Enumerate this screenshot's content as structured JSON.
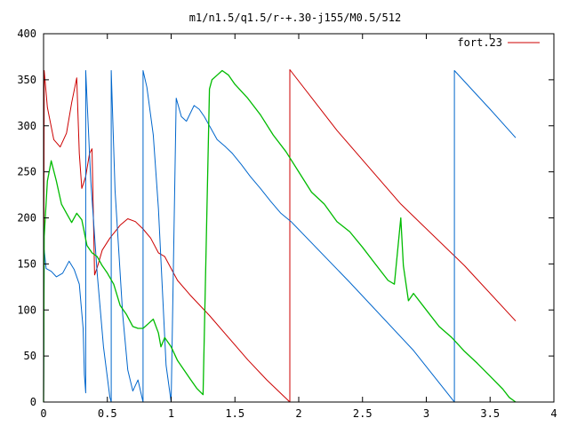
{
  "chart_data": {
    "type": "line",
    "title": "m1/n1.5/q1.5/r-+.30-j155/M0.5/512",
    "xlabel": "",
    "ylabel": "",
    "xlim": [
      0,
      4
    ],
    "ylim": [
      0,
      400
    ],
    "x_ticks": [
      0,
      0.5,
      1,
      1.5,
      2,
      2.5,
      3,
      3.5,
      4
    ],
    "x_tick_labels": [
      "0",
      "0.5",
      "1",
      "1.5",
      "2",
      "2.5",
      "3",
      "3.5",
      "4"
    ],
    "y_ticks": [
      0,
      50,
      100,
      150,
      200,
      250,
      300,
      350,
      400
    ],
    "y_tick_labels": [
      "0",
      "50",
      "100",
      "150",
      "200",
      "250",
      "300",
      "350",
      "400"
    ],
    "grid": false,
    "legend_position": "top-right",
    "legend": [
      {
        "label": "fort.23",
        "color": "#cc0000"
      }
    ],
    "series": [
      {
        "name": "fort.23",
        "color": "#cc0000",
        "x": [
          0,
          0.005,
          0.03,
          0.08,
          0.13,
          0.18,
          0.22,
          0.26,
          0.28,
          0.3,
          0.33,
          0.36,
          0.38,
          0.4,
          0.42,
          0.46,
          0.52,
          0.6,
          0.66,
          0.72,
          0.78,
          0.84,
          0.9,
          0.95,
          1.0,
          1.05,
          1.15,
          1.3,
          1.45,
          1.6,
          1.75,
          1.93,
          1.93,
          2.3,
          2.8,
          3.3,
          3.7
        ],
        "y": [
          0,
          360,
          320,
          285,
          277,
          292,
          325,
          352,
          270,
          232,
          245,
          270,
          275,
          138,
          146,
          165,
          178,
          192,
          199,
          196,
          188,
          178,
          162,
          158,
          145,
          132,
          116,
          94,
          70,
          46,
          24,
          0,
          361,
          295,
          215,
          148,
          88
        ]
      },
      {
        "name": "blue",
        "color": "#0066cc",
        "x": [
          0,
          0.005,
          0.02,
          0.06,
          0.1,
          0.15,
          0.2,
          0.24,
          0.28,
          0.31,
          0.32,
          0.33,
          0.33,
          0.37,
          0.42,
          0.47,
          0.52,
          0.53,
          0.53,
          0.56,
          0.62,
          0.66,
          0.7,
          0.74,
          0.78,
          0.78,
          0.81,
          0.86,
          0.9,
          0.96,
          1.0,
          1.04,
          1.08,
          1.12,
          1.18,
          1.22,
          1.26,
          1.3,
          1.36,
          1.42,
          1.48,
          1.55,
          1.62,
          1.7,
          1.78,
          1.86,
          1.94,
          2.4,
          2.9,
          3.22,
          3.22,
          3.5,
          3.7
        ],
        "y": [
          0,
          165,
          145,
          142,
          136,
          140,
          153,
          144,
          128,
          80,
          30,
          10,
          360,
          240,
          140,
          60,
          5,
          0,
          360,
          230,
          95,
          35,
          12,
          24,
          0,
          360,
          342,
          290,
          210,
          40,
          0,
          330,
          310,
          305,
          322,
          318,
          310,
          300,
          285,
          278,
          270,
          258,
          245,
          232,
          218,
          205,
          196,
          130,
          56,
          0,
          360,
          318,
          287
        ]
      },
      {
        "name": "green",
        "color": "#00bb00",
        "x": [
          0,
          0.005,
          0.03,
          0.06,
          0.1,
          0.14,
          0.18,
          0.22,
          0.26,
          0.3,
          0.34,
          0.38,
          0.42,
          0.46,
          0.5,
          0.55,
          0.6,
          0.65,
          0.7,
          0.74,
          0.78,
          0.82,
          0.86,
          0.9,
          0.92,
          0.95,
          1.0,
          1.05,
          1.1,
          1.15,
          1.2,
          1.25,
          1.3,
          1.32,
          1.36,
          1.4,
          1.45,
          1.5,
          1.6,
          1.7,
          1.8,
          1.9,
          2.0,
          2.1,
          2.2,
          2.3,
          2.4,
          2.5,
          2.6,
          2.7,
          2.75,
          2.8,
          2.82,
          2.86,
          2.9,
          3.0,
          3.1,
          3.2,
          3.3,
          3.4,
          3.5,
          3.6,
          3.65,
          3.7
        ],
        "y": [
          0,
          180,
          240,
          262,
          240,
          215,
          205,
          195,
          205,
          198,
          170,
          162,
          158,
          148,
          140,
          128,
          105,
          95,
          82,
          80,
          80,
          85,
          90,
          75,
          60,
          70,
          60,
          45,
          35,
          25,
          15,
          8,
          340,
          350,
          355,
          360,
          355,
          345,
          330,
          312,
          290,
          272,
          250,
          228,
          215,
          196,
          185,
          168,
          150,
          132,
          128,
          200,
          148,
          110,
          118,
          100,
          82,
          70,
          55,
          42,
          28,
          14,
          5,
          0
        ]
      }
    ]
  }
}
